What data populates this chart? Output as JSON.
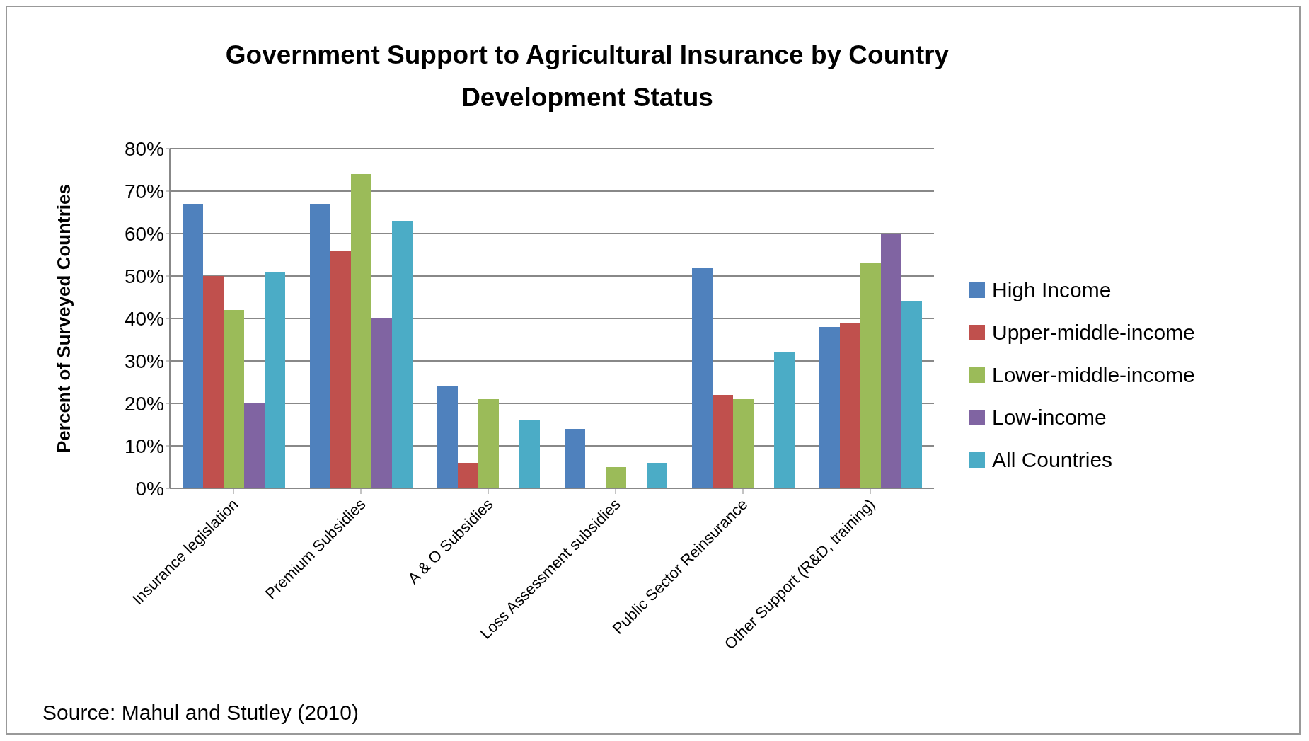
{
  "chart_data": {
    "type": "bar",
    "title": "Government Support to Agricultural Insurance by Country Development Status",
    "ylabel": "Percent of Surveyed Countries",
    "categories": [
      "Insurance legislation",
      "Premium Subsidies",
      "A & O Subsidies",
      "Loss Assessment subsidies",
      "Public Sector Reinsurance",
      "Other Support (R&D, training)"
    ],
    "series": [
      {
        "name": "High Income",
        "color": "#4f81bd",
        "values": [
          67,
          67,
          24,
          14,
          52,
          38
        ]
      },
      {
        "name": "Upper-middle-income",
        "color": "#c0504d",
        "values": [
          50,
          56,
          6,
          0,
          22,
          39
        ]
      },
      {
        "name": "Lower-middle-income",
        "color": "#9bbb59",
        "values": [
          42,
          74,
          21,
          5,
          21,
          53
        ]
      },
      {
        "name": "Low-income",
        "color": "#8064a2",
        "values": [
          20,
          40,
          0,
          0,
          0,
          60
        ]
      },
      {
        "name": "All Countries",
        "color": "#4bacc6",
        "values": [
          51,
          63,
          16,
          6,
          32,
          44
        ]
      }
    ],
    "ylim": [
      0,
      80
    ],
    "yticks": [
      {
        "value": 0,
        "label": "0%"
      },
      {
        "value": 10,
        "label": "10%"
      },
      {
        "value": 20,
        "label": "20%"
      },
      {
        "value": 30,
        "label": "30%"
      },
      {
        "value": 40,
        "label": "40%"
      },
      {
        "value": 50,
        "label": "50%"
      },
      {
        "value": 60,
        "label": "60%"
      },
      {
        "value": 70,
        "label": "70%"
      },
      {
        "value": 80,
        "label": "80%"
      }
    ],
    "grid": "y",
    "legend": "right",
    "annotations": [
      "Source: Mahul and Stutley (2010)"
    ]
  }
}
